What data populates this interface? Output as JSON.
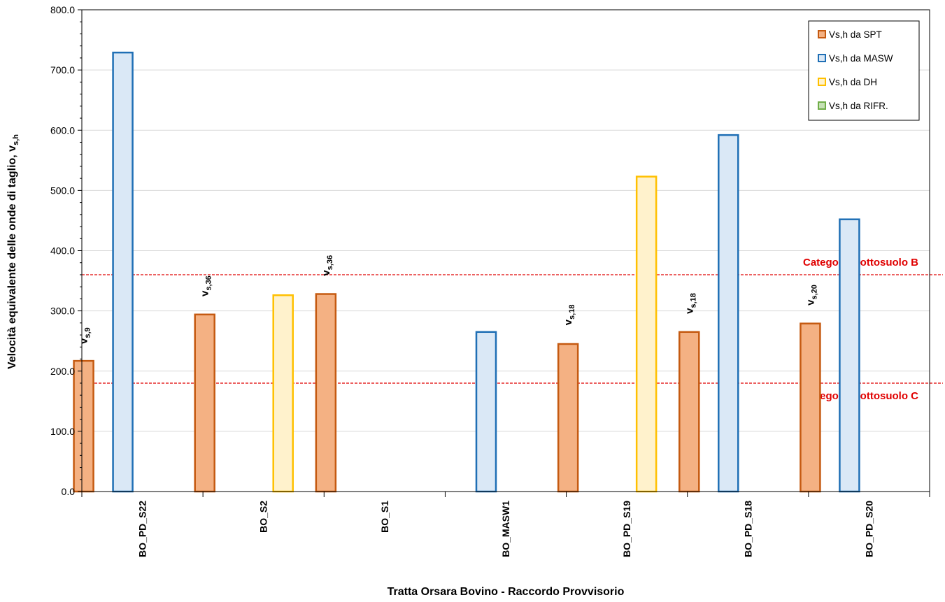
{
  "chart_data": {
    "type": "bar",
    "xlabel": "Tratta Orsara Bovino - Raccordo Provvisorio",
    "ylabel_main": "Velocità equivalente delle onde di taglio, v",
    "ylabel_sub": "s,h",
    "ylim": [
      0,
      800
    ],
    "yticks": [
      "0.0",
      "100.0",
      "200.0",
      "300.0",
      "400.0",
      "500.0",
      "600.0",
      "700.0",
      "800.0"
    ],
    "grid": true,
    "legend_position": "top-right",
    "categories": [
      "BO_PD_S22",
      "BO_S2",
      "BO_S1",
      "BO_MASW1",
      "BO_PD_S19",
      "BO_PD_S18",
      "BO_PD_S20"
    ],
    "series": [
      {
        "name": "Vs,h da SPT",
        "fill": "#f4b183",
        "stroke": "#c55a11",
        "values": [
          217,
          294,
          328,
          null,
          245,
          265,
          279
        ]
      },
      {
        "name": "Vs,h da MASW",
        "fill": "#dae8f6",
        "stroke": "#1f6fb5",
        "values": [
          729,
          null,
          null,
          265,
          null,
          592,
          452
        ]
      },
      {
        "name": "Vs,h da DH",
        "fill": "#fff2cc",
        "stroke": "#ffc000",
        "values": [
          null,
          326,
          null,
          null,
          523,
          null,
          null
        ]
      },
      {
        "name": "Vs,h da RIFR.",
        "fill": "#c5e0b4",
        "stroke": "#70ad47",
        "values": [
          null,
          null,
          null,
          null,
          null,
          null,
          null
        ]
      }
    ],
    "reference_lines": [
      {
        "value": 360,
        "label": "Categoria sottosuolo B",
        "color": "#e00000"
      },
      {
        "value": 180,
        "label": "Categoria sottosuolo C",
        "color": "#e00000"
      }
    ],
    "annotations": [
      {
        "category": "BO_PD_S22",
        "main": "v",
        "sub": "s,9",
        "y_value": 245
      },
      {
        "category": "BO_S2",
        "main": "v",
        "sub": "s,36",
        "y_value": 324
      },
      {
        "category": "BO_S1",
        "main": "v",
        "sub": "s,36",
        "y_value": 358
      },
      {
        "category": "BO_PD_S19",
        "main": "v",
        "sub": "s,18",
        "y_value": 276
      },
      {
        "category": "BO_PD_S18",
        "main": "v",
        "sub": "s,18",
        "y_value": 295
      },
      {
        "category": "BO_PD_S20",
        "main": "v",
        "sub": "s,20",
        "y_value": 309
      }
    ]
  }
}
